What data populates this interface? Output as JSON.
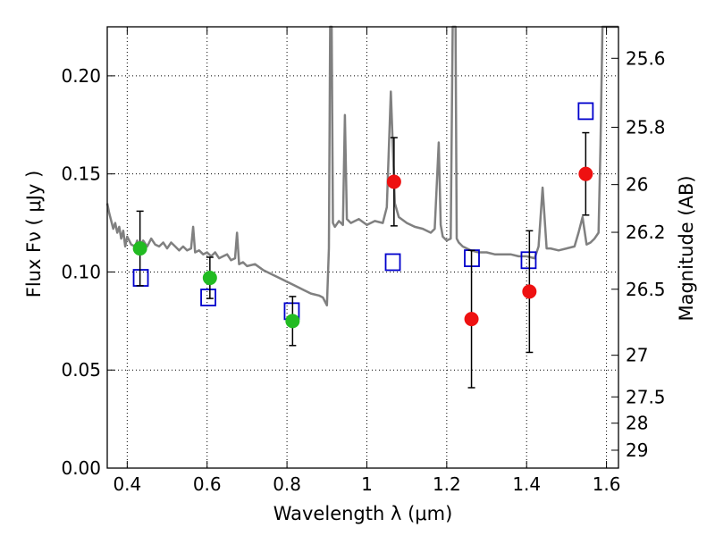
{
  "chart_data": {
    "type": "scatter",
    "xlabel": "Wavelength  λ (μm)",
    "ylabel": "Flux  Fν  ( μJy )",
    "ylabel_right": "Magnitude (AB)",
    "xlim": [
      0.35,
      1.63
    ],
    "ylim": [
      0,
      0.225
    ],
    "grid": true,
    "x_ticks": [
      {
        "value": 0.4,
        "label": "0.4"
      },
      {
        "value": 0.6,
        "label": "0.6"
      },
      {
        "value": 0.8,
        "label": "0.8"
      },
      {
        "value": 1.0,
        "label": "1"
      },
      {
        "value": 1.2,
        "label": "1.2"
      },
      {
        "value": 1.4,
        "label": "1.4"
      },
      {
        "value": 1.6,
        "label": "1.6"
      }
    ],
    "y_ticks": [
      {
        "value": 0.0,
        "label": "0.00"
      },
      {
        "value": 0.05,
        "label": "0.05"
      },
      {
        "value": 0.1,
        "label": "0.10"
      },
      {
        "value": 0.15,
        "label": "0.15"
      },
      {
        "value": 0.2,
        "label": "0.20"
      }
    ],
    "right_ticks": [
      {
        "mag": 25.6,
        "label": "25.6"
      },
      {
        "mag": 25.8,
        "label": "25.8"
      },
      {
        "mag": 26.0,
        "label": "26"
      },
      {
        "mag": 26.2,
        "label": "26.2"
      },
      {
        "mag": 26.5,
        "label": "26.5"
      },
      {
        "mag": 27.0,
        "label": "27"
      },
      {
        "mag": 27.5,
        "label": "27.5"
      },
      {
        "mag": 28.0,
        "label": "28"
      },
      {
        "mag": 29.0,
        "label": "29"
      }
    ],
    "series": [
      {
        "color": "#808080",
        "kind": "line",
        "x": [
          0.35,
          0.355,
          0.36,
          0.365,
          0.37,
          0.375,
          0.38,
          0.385,
          0.39,
          0.395,
          0.4,
          0.405,
          0.41,
          0.42,
          0.425,
          0.43,
          0.44,
          0.45,
          0.46,
          0.47,
          0.48,
          0.49,
          0.5,
          0.51,
          0.52,
          0.53,
          0.54,
          0.55,
          0.56,
          0.565,
          0.57,
          0.58,
          0.59,
          0.6,
          0.61,
          0.62,
          0.63,
          0.64,
          0.65,
          0.66,
          0.67,
          0.675,
          0.68,
          0.69,
          0.7,
          0.72,
          0.74,
          0.76,
          0.78,
          0.8,
          0.82,
          0.84,
          0.86,
          0.88,
          0.89,
          0.9,
          0.905,
          0.908,
          0.912,
          0.915,
          0.92,
          0.93,
          0.94,
          0.945,
          0.95,
          0.96,
          0.97,
          0.98,
          1.0,
          1.02,
          1.04,
          1.05,
          1.06,
          1.07,
          1.08,
          1.1,
          1.12,
          1.14,
          1.16,
          1.17,
          1.18,
          1.185,
          1.19,
          1.2,
          1.21,
          1.215,
          1.218,
          1.222,
          1.225,
          1.23,
          1.24,
          1.26,
          1.28,
          1.3,
          1.32,
          1.34,
          1.36,
          1.38,
          1.4,
          1.42,
          1.43,
          1.44,
          1.45,
          1.46,
          1.48,
          1.5,
          1.52,
          1.53,
          1.54,
          1.55,
          1.56,
          1.57,
          1.58,
          1.585,
          1.59,
          1.6,
          1.61,
          1.62,
          1.63
        ],
        "y": [
          0.135,
          0.13,
          0.126,
          0.122,
          0.125,
          0.12,
          0.123,
          0.117,
          0.121,
          0.113,
          0.118,
          0.116,
          0.114,
          0.113,
          0.116,
          0.113,
          0.116,
          0.113,
          0.117,
          0.114,
          0.113,
          0.115,
          0.112,
          0.115,
          0.113,
          0.111,
          0.113,
          0.111,
          0.112,
          0.123,
          0.11,
          0.111,
          0.109,
          0.11,
          0.108,
          0.11,
          0.107,
          0.108,
          0.109,
          0.106,
          0.107,
          0.12,
          0.104,
          0.105,
          0.103,
          0.104,
          0.101,
          0.099,
          0.097,
          0.095,
          0.093,
          0.091,
          0.089,
          0.088,
          0.087,
          0.083,
          0.112,
          0.225,
          0.225,
          0.125,
          0.123,
          0.126,
          0.124,
          0.18,
          0.127,
          0.125,
          0.126,
          0.127,
          0.124,
          0.126,
          0.125,
          0.133,
          0.192,
          0.135,
          0.128,
          0.125,
          0.123,
          0.122,
          0.12,
          0.122,
          0.166,
          0.124,
          0.118,
          0.116,
          0.117,
          0.225,
          0.225,
          0.225,
          0.117,
          0.115,
          0.113,
          0.111,
          0.11,
          0.11,
          0.109,
          0.109,
          0.109,
          0.108,
          0.108,
          0.107,
          0.113,
          0.143,
          0.112,
          0.112,
          0.111,
          0.112,
          0.113,
          0.12,
          0.128,
          0.114,
          0.115,
          0.117,
          0.12,
          0.165,
          0.225,
          0.225,
          0.225,
          0.225,
          0.225
        ]
      },
      {
        "color": "#0000cc",
        "kind": "open-square",
        "x": [
          0.434,
          0.603,
          0.812,
          1.065,
          1.263,
          1.405,
          1.548
        ],
        "y": [
          0.097,
          0.087,
          0.08,
          0.105,
          0.107,
          0.106,
          0.182
        ]
      },
      {
        "color": "#22bb22",
        "kind": "filled-circle",
        "x": [
          0.432,
          0.607,
          0.814
        ],
        "y": [
          0.112,
          0.097,
          0.075
        ],
        "err": [
          0.019,
          0.0105,
          0.0125
        ]
      },
      {
        "color": "#ee1111",
        "kind": "filled-circle",
        "x": [
          1.068,
          1.262,
          1.407,
          1.548
        ],
        "y": [
          0.146,
          0.076,
          0.09,
          0.15
        ],
        "err": [
          0.0225,
          0.035,
          0.031,
          0.021
        ]
      }
    ]
  }
}
